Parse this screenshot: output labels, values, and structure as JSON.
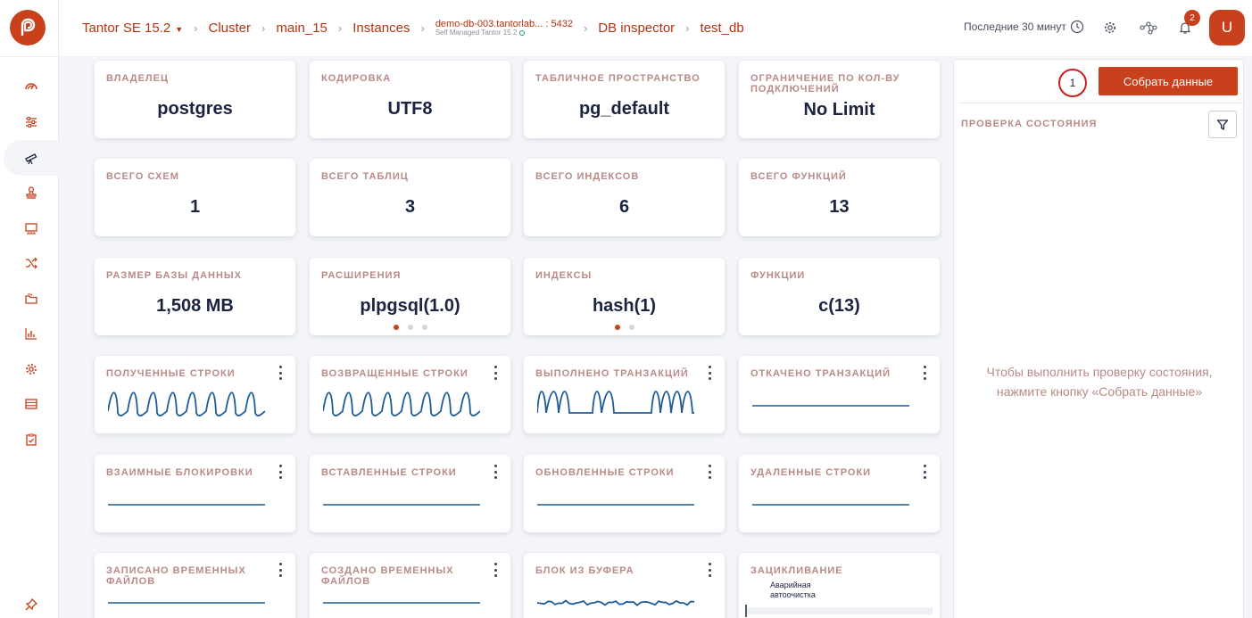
{
  "breadcrumbs": {
    "product": "Tantor SE 15.2",
    "cluster": "Cluster",
    "main": "main_15",
    "instances": "Instances",
    "instance_name": "demo-db-003.tantorlab...",
    "instance_port": ": 5432",
    "instance_sub": "Self Managed Tantor 15.2",
    "inspector": "DB inspector",
    "database": "test_db"
  },
  "header": {
    "time_range": "Последние 30 минут",
    "notifications_count": "2",
    "avatar_letter": "U"
  },
  "colors": {
    "accent": "#c8401c",
    "label": "#b98a86",
    "spark": "#1f5b97"
  },
  "sidebar": {
    "items": [
      "dashboard-icon",
      "sliders-icon",
      "telescope-icon",
      "stamp-icon",
      "monitor-icon",
      "shuffle-icon",
      "folders-icon",
      "bar-chart-icon",
      "gear-icon",
      "table-icon",
      "checklist-icon",
      "pin-icon"
    ]
  },
  "info_cards": [
    {
      "label": "Владелец",
      "value": "postgres"
    },
    {
      "label": "Кодировка",
      "value": "UTF8"
    },
    {
      "label": "Табличное пространство",
      "value": "pg_default"
    },
    {
      "label": "Ограничение по кол-ву подключений",
      "value": "No Limit"
    },
    {
      "label": "Всего схем",
      "value": "1"
    },
    {
      "label": "Всего таблиц",
      "value": "3"
    },
    {
      "label": "Всего индексов",
      "value": "6"
    },
    {
      "label": "Всего функций",
      "value": "13"
    },
    {
      "label": "Размер базы данных",
      "value": "1,508 MB"
    },
    {
      "label": "Расширения",
      "value": "plpgsql(1.0)",
      "pager": {
        "pages": 3,
        "active": 0
      }
    },
    {
      "label": "Индексы",
      "value": "hash(1)",
      "pager": {
        "pages": 2,
        "active": 0
      }
    },
    {
      "label": "Функции",
      "value": "c(13)"
    }
  ],
  "metric_cards": [
    {
      "label": "Полученные строки",
      "menu": true,
      "pattern": "wave-dense"
    },
    {
      "label": "Возвращенные строки",
      "menu": true,
      "pattern": "wave-dense"
    },
    {
      "label": "Выполнено транзакций",
      "menu": true,
      "pattern": "wave-burst"
    },
    {
      "label": "Откачено транзакций",
      "menu": true,
      "pattern": "flat"
    },
    {
      "label": "Взаимные блокировки",
      "menu": true,
      "pattern": "flat"
    },
    {
      "label": "Вставленные строки",
      "menu": true,
      "pattern": "flat"
    },
    {
      "label": "Обновленные строки",
      "menu": true,
      "pattern": "flat"
    },
    {
      "label": "Удаленные строки",
      "menu": true,
      "pattern": "flat"
    },
    {
      "label": "Записано временных файлов",
      "menu": true,
      "pattern": "flat"
    },
    {
      "label": "Создано временных файлов",
      "menu": true,
      "pattern": "flat"
    },
    {
      "label": "Блок из буфера",
      "menu": true,
      "pattern": "noise"
    },
    {
      "label": "Зацикливание",
      "menu": false,
      "pattern": "wraparound",
      "legend": "Аварийная автоочистка"
    }
  ],
  "panel": {
    "step": "1",
    "collect_button": "Собрать данные",
    "title": "Проверка состояния",
    "empty_text_1": "Чтобы выполнить проверку состояния,",
    "empty_text_2": "нажмите кнопку «Собрать данные»"
  }
}
